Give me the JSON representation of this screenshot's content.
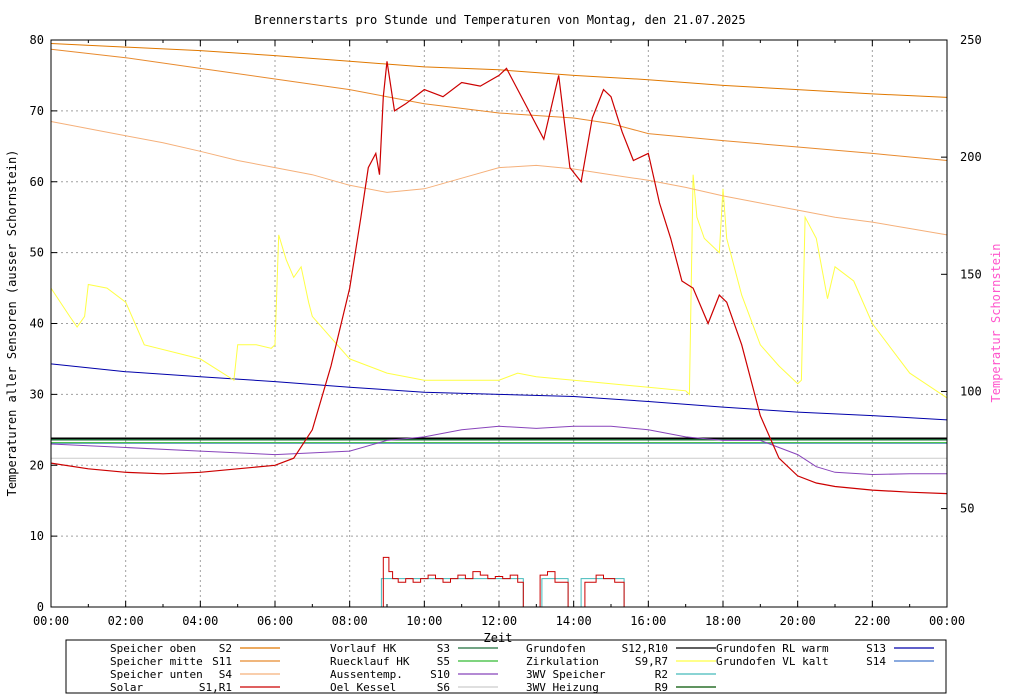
{
  "chart_data": {
    "type": "line",
    "title": "Brennerstarts pro Stunde und Temperaturen von Montag, den 21.07.2025",
    "xlabel": "Zeit",
    "ylabel": "Temperaturen aller Sensoren (ausser Schornstein)",
    "y2label": "Temperatur Schornstein",
    "xlim": [
      0,
      24
    ],
    "ylim": [
      0,
      80
    ],
    "y2lim": [
      8,
      250
    ],
    "grid": true,
    "x_ticks": [
      "00:00",
      "02:00",
      "04:00",
      "06:00",
      "08:00",
      "10:00",
      "12:00",
      "14:00",
      "16:00",
      "18:00",
      "20:00",
      "22:00",
      "00:00"
    ],
    "y_ticks": [
      "0",
      "10",
      "20",
      "30",
      "40",
      "50",
      "60",
      "70",
      "80"
    ],
    "y2_ticks": [
      "50",
      "100",
      "150",
      "200",
      "250"
    ],
    "colors": {
      "S2": "#e07800",
      "S11": "#e88a2e",
      "S4": "#f5b07a",
      "S1": "#cc0000",
      "S3": "#1f6e3a",
      "S5": "#33bb33",
      "S10": "#8844bb",
      "S6": "#cccccc",
      "S12": "#000000",
      "S9": "#ffff44",
      "R2": "#44bbbb",
      "R9": "#005500",
      "S13": "#0000aa",
      "S14": "#4477cc",
      "axis2_label": "#ff55cc"
    },
    "series": [
      {
        "name": "Speicher oben S2",
        "x": [
          0,
          2,
          4,
          6,
          8,
          10,
          12,
          14,
          16,
          18,
          20,
          22,
          24
        ],
        "y": [
          79.5,
          79,
          78.5,
          77.8,
          77,
          76.2,
          75.8,
          75,
          74.4,
          73.6,
          73,
          72.4,
          71.9
        ]
      },
      {
        "name": "Speicher mitte S11",
        "x": [
          0,
          2,
          4,
          6,
          8,
          9,
          10,
          12,
          14,
          15,
          16,
          18,
          20,
          22,
          24
        ],
        "y": [
          78.7,
          77.5,
          76,
          74.5,
          73,
          72,
          71,
          69.7,
          69,
          68.2,
          66.8,
          65.8,
          64.9,
          64,
          63
        ]
      },
      {
        "name": "Speicher unten S4",
        "x": [
          0,
          1,
          2,
          3,
          4,
          5,
          6,
          7,
          8,
          9,
          10,
          11,
          12,
          13,
          14,
          15,
          16,
          17,
          18,
          19,
          20,
          21,
          22,
          23,
          24
        ],
        "y": [
          68.5,
          67.5,
          66.5,
          65.5,
          64.3,
          63,
          62,
          61,
          59.5,
          58.5,
          59,
          60.5,
          62,
          62.3,
          61.8,
          61,
          60.2,
          59.2,
          58,
          57,
          56,
          55,
          54.3,
          53.4,
          52.5
        ]
      },
      {
        "name": "Solar S1,R1",
        "x": [
          0,
          1,
          2,
          3,
          4,
          5,
          6,
          6.5,
          7,
          7.5,
          8,
          8.3,
          8.5,
          8.7,
          8.8,
          8.9,
          9,
          9.2,
          9.5,
          10,
          10.5,
          11,
          11.5,
          12,
          12.2,
          12.5,
          12.8,
          13.2,
          13.6,
          13.9,
          14.2,
          14.5,
          14.8,
          15,
          15.3,
          15.6,
          16,
          16.3,
          16.6,
          16.9,
          17.2,
          17.6,
          17.9,
          18.1,
          18.5,
          19,
          19.5,
          20,
          20.5,
          21,
          22,
          23,
          24
        ],
        "y": [
          20.3,
          19.5,
          19,
          18.8,
          19,
          19.5,
          20,
          21,
          25,
          34,
          45,
          55,
          62,
          64,
          61,
          72,
          77,
          70,
          71,
          73,
          72,
          74,
          73.5,
          75,
          76,
          73,
          70,
          66,
          75,
          62,
          60,
          69,
          73,
          72,
          67,
          63,
          64,
          57,
          52,
          46,
          45,
          40,
          44,
          43,
          37,
          27,
          21,
          18.5,
          17.5,
          17,
          16.5,
          16.2,
          16
        ]
      },
      {
        "name": "Vorlauf HK S3",
        "x": [
          0,
          24
        ],
        "y": [
          23.6,
          23.6
        ]
      },
      {
        "name": "Ruecklauf HK S5",
        "x": [
          0,
          24
        ],
        "y": [
          23.2,
          23.2
        ]
      },
      {
        "name": "Aussentemp. S10",
        "x": [
          0,
          2,
          4,
          6,
          8,
          9,
          10,
          11,
          12,
          13,
          14,
          15,
          16,
          17,
          18,
          19,
          20,
          20.5,
          21,
          22,
          23,
          24
        ],
        "y": [
          23,
          22.5,
          22,
          21.5,
          22,
          23.5,
          24,
          25,
          25.5,
          25.2,
          25.5,
          25.5,
          25,
          24,
          23.5,
          23.5,
          21.5,
          19.8,
          19,
          18.7,
          18.8,
          18.8
        ]
      },
      {
        "name": "Oel Kessel S6",
        "x": [
          0,
          24
        ],
        "y": [
          21,
          21
        ]
      },
      {
        "name": "Grundofen S12,R10",
        "x": [
          0,
          24
        ],
        "y": [
          23.8,
          23.8
        ]
      },
      {
        "name": "Zirkulation S9,R7",
        "x": [
          0,
          0.5,
          0.7,
          0.9,
          1,
          1.5,
          2,
          2.5,
          4,
          4.9,
          5,
          5.5,
          5.9,
          6,
          6.1,
          6.3,
          6.5,
          6.7,
          6.9,
          7,
          8,
          9,
          10,
          12,
          12.5,
          13,
          14,
          15,
          16,
          17,
          17.1,
          17.2,
          17.3,
          17.5,
          17.9,
          18,
          18.1,
          18.5,
          19,
          19.5,
          20,
          20.1,
          20.2,
          20.5,
          20.8,
          21,
          21.5,
          22,
          23,
          24
        ],
        "y": [
          45,
          41,
          39.5,
          41,
          45.5,
          45,
          43,
          37,
          35,
          32,
          37,
          37,
          36.5,
          37,
          52.5,
          49,
          46.5,
          48,
          43,
          41,
          35,
          33,
          32,
          32,
          33,
          32.5,
          32,
          31.5,
          31,
          30.5,
          30,
          61,
          55,
          52,
          50,
          59,
          52,
          44,
          37,
          34,
          31.5,
          32,
          55,
          52,
          43.5,
          48,
          46,
          40,
          33,
          29.5
        ]
      },
      {
        "name": "3WV Speicher R2",
        "steps": [
          [
            0,
            0
          ],
          [
            8.85,
            4
          ],
          [
            12.65,
            0
          ],
          [
            13.15,
            4
          ],
          [
            13.85,
            0
          ],
          [
            14.2,
            4
          ],
          [
            15.35,
            0
          ]
        ]
      },
      {
        "name": "3WV Heizung R9",
        "x": [
          0,
          24
        ],
        "y": [
          0,
          0
        ]
      },
      {
        "name": "Grundofen RL warm S13",
        "x": [
          0,
          2,
          4,
          6,
          8,
          10,
          12,
          14,
          16,
          18,
          20,
          22,
          24
        ],
        "y": [
          34.3,
          33.2,
          32.5,
          31.8,
          31,
          30.3,
          30,
          29.7,
          29,
          28.2,
          27.5,
          27,
          26.4
        ]
      },
      {
        "name": "Grundofen VL kalt S14",
        "x": [
          0,
          24
        ],
        "y": [
          23.1,
          23.1
        ]
      },
      {
        "name": "Brennerstarts",
        "steps": [
          [
            8.9,
            7
          ],
          [
            9.05,
            5
          ],
          [
            9.15,
            4
          ],
          [
            9.3,
            3.5
          ],
          [
            9.5,
            4
          ],
          [
            9.7,
            3.5
          ],
          [
            9.9,
            4
          ],
          [
            10.1,
            4.5
          ],
          [
            10.3,
            4
          ],
          [
            10.5,
            3.5
          ],
          [
            10.7,
            4
          ],
          [
            10.9,
            4.5
          ],
          [
            11.1,
            4
          ],
          [
            11.3,
            5
          ],
          [
            11.5,
            4.5
          ],
          [
            11.7,
            4
          ],
          [
            11.9,
            4.3
          ],
          [
            12.1,
            4
          ],
          [
            12.3,
            4.5
          ],
          [
            12.5,
            3.5
          ],
          [
            12.65,
            0
          ],
          [
            13.1,
            4.5
          ],
          [
            13.3,
            5
          ],
          [
            13.5,
            3.5
          ],
          [
            13.85,
            0
          ],
          [
            14.3,
            3.5
          ],
          [
            14.6,
            4.5
          ],
          [
            14.8,
            4
          ],
          [
            15.1,
            3.5
          ],
          [
            15.35,
            0
          ]
        ]
      }
    ],
    "legend": [
      {
        "label": "Speicher oben",
        "id": "S2",
        "color": "#e07800"
      },
      {
        "label": "Speicher mitte",
        "id": "S11",
        "color": "#e88a2e"
      },
      {
        "label": "Speicher unten",
        "id": "S4",
        "color": "#f5b07a"
      },
      {
        "label": "Solar",
        "id": "S1,R1",
        "color": "#cc0000"
      },
      {
        "label": "Vorlauf HK",
        "id": "S3",
        "color": "#1f6e3a"
      },
      {
        "label": "Ruecklauf HK",
        "id": "S5",
        "color": "#33bb33"
      },
      {
        "label": "Aussentemp.",
        "id": "S10",
        "color": "#8844bb"
      },
      {
        "label": "Oel Kessel",
        "id": "S6",
        "color": "#cccccc"
      },
      {
        "label": "Grundofen",
        "id": "S12,R10",
        "color": "#000000"
      },
      {
        "label": "Zirkulation",
        "id": "S9,R7",
        "color": "#ffff44"
      },
      {
        "label": "3WV Speicher",
        "id": "R2",
        "color": "#44bbbb"
      },
      {
        "label": "3WV Heizung",
        "id": "R9",
        "color": "#005500"
      },
      {
        "label": "Grundofen RL warm",
        "id": "S13",
        "color": "#0000aa"
      },
      {
        "label": "Grundofen VL kalt",
        "id": "S14",
        "color": "#4477cc"
      }
    ]
  }
}
